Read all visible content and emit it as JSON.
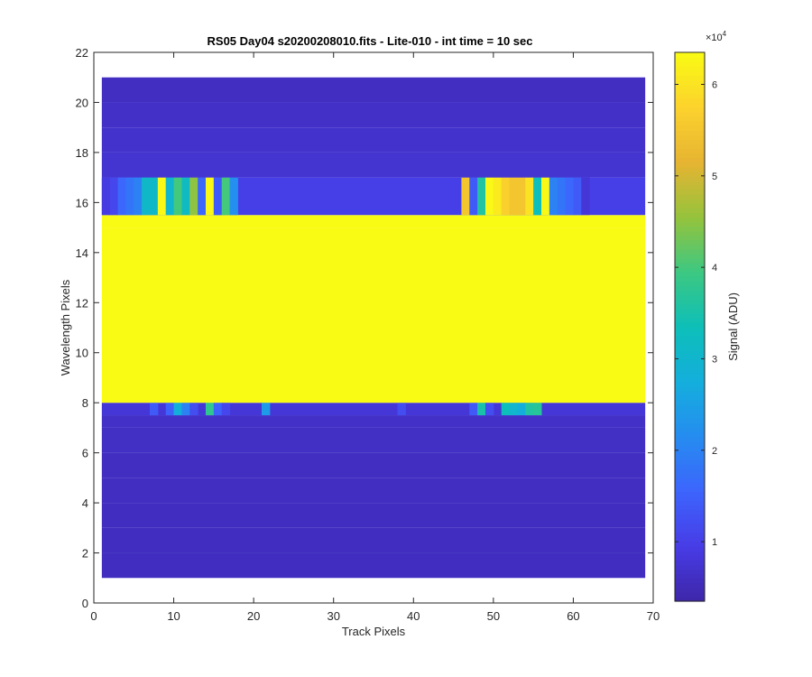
{
  "chart_data": {
    "type": "heatmap",
    "title": "RS05 Day04  s20200208010.fits - Lite-010 - int time = 10 sec",
    "xlabel": "Track Pixels",
    "ylabel": "Wavelength Pixels",
    "xlim": [
      0,
      70
    ],
    "ylim": [
      0,
      22
    ],
    "x_ticks": [
      "0",
      "10",
      "20",
      "30",
      "40",
      "50",
      "60",
      "70"
    ],
    "y_ticks": [
      "0",
      "2",
      "4",
      "6",
      "8",
      "10",
      "12",
      "14",
      "16",
      "18",
      "20",
      "22"
    ],
    "x_tick_values": [
      0,
      10,
      20,
      30,
      40,
      50,
      60,
      70
    ],
    "y_tick_values": [
      0,
      2,
      4,
      6,
      8,
      10,
      12,
      14,
      16,
      18,
      20,
      22
    ],
    "grid": false,
    "image_x_range": [
      1,
      69
    ],
    "image_y_range": [
      1,
      21
    ],
    "colormap": "parula",
    "colorbar": {
      "label": "Signal (ADU)",
      "exponent": "×10",
      "exponent_power": "4",
      "ticks": [
        "1",
        "2",
        "3",
        "4",
        "5",
        "6"
      ],
      "tick_values": [
        10000,
        20000,
        30000,
        40000,
        50000,
        60000
      ],
      "clim": [
        3500,
        63500
      ]
    },
    "rows": [
      {
        "row_y": 1,
        "base_adu": 5800
      },
      {
        "row_y": 2,
        "base_adu": 5800
      },
      {
        "row_y": 3,
        "base_adu": 5800
      },
      {
        "row_y": 4,
        "base_adu": 6000
      },
      {
        "row_y": 5,
        "base_adu": 6000
      },
      {
        "row_y": 6,
        "base_adu": 6200
      },
      {
        "row_y": 7,
        "base_adu": 6500
      },
      {
        "row_y": 7.5,
        "base_adu": 8000,
        "spikes": [
          {
            "x": 7,
            "adu": 14000
          },
          {
            "x": 9,
            "adu": 15000
          },
          {
            "x": 10,
            "adu": 28000
          },
          {
            "x": 11,
            "adu": 20000
          },
          {
            "x": 12,
            "adu": 12000
          },
          {
            "x": 14,
            "adu": 38000
          },
          {
            "x": 15,
            "adu": 15000
          },
          {
            "x": 16,
            "adu": 11000
          },
          {
            "x": 21,
            "adu": 24000
          },
          {
            "x": 38,
            "adu": 12000
          },
          {
            "x": 47,
            "adu": 14000
          },
          {
            "x": 48,
            "adu": 35000
          },
          {
            "x": 49,
            "adu": 12000
          },
          {
            "x": 51,
            "adu": 33000
          },
          {
            "x": 52,
            "adu": 30000
          },
          {
            "x": 53,
            "adu": 28000
          },
          {
            "x": 54,
            "adu": 36000
          },
          {
            "x": 55,
            "adu": 37000
          }
        ]
      },
      {
        "row_y": 8,
        "base_adu": 63500
      },
      {
        "row_y": 15,
        "base_adu": 63500
      },
      {
        "row_y": 15.5,
        "base_adu": 10000,
        "spikes": [
          {
            "x": 1,
            "adu": 9000
          },
          {
            "x": 2,
            "adu": 11000
          },
          {
            "x": 3,
            "adu": 16000
          },
          {
            "x": 4,
            "adu": 18000
          },
          {
            "x": 5,
            "adu": 20000
          },
          {
            "x": 6,
            "adu": 31000
          },
          {
            "x": 7,
            "adu": 31000
          },
          {
            "x": 8,
            "adu": 63000
          },
          {
            "x": 9,
            "adu": 30000
          },
          {
            "x": 10,
            "adu": 40000
          },
          {
            "x": 11,
            "adu": 32000
          },
          {
            "x": 12,
            "adu": 45000
          },
          {
            "x": 13,
            "adu": 16000
          },
          {
            "x": 14,
            "adu": 63000
          },
          {
            "x": 15,
            "adu": 14000
          },
          {
            "x": 16,
            "adu": 40000
          },
          {
            "x": 17,
            "adu": 22000
          },
          {
            "x": 46,
            "adu": 55000
          },
          {
            "x": 47,
            "adu": 14000
          },
          {
            "x": 48,
            "adu": 36000
          },
          {
            "x": 49,
            "adu": 63000
          },
          {
            "x": 50,
            "adu": 61000
          },
          {
            "x": 51,
            "adu": 57000
          },
          {
            "x": 52,
            "adu": 55000
          },
          {
            "x": 53,
            "adu": 55000
          },
          {
            "x": 54,
            "adu": 60000
          },
          {
            "x": 55,
            "adu": 33000
          },
          {
            "x": 56,
            "adu": 63000
          },
          {
            "x": 57,
            "adu": 20000
          },
          {
            "x": 58,
            "adu": 18000
          },
          {
            "x": 59,
            "adu": 16000
          },
          {
            "x": 60,
            "adu": 14000
          },
          {
            "x": 61,
            "adu": 8000
          }
        ]
      },
      {
        "row_y": 17,
        "base_adu": 7500
      },
      {
        "row_y": 18,
        "base_adu": 7000
      },
      {
        "row_y": 19,
        "base_adu": 6500
      },
      {
        "row_y": 20,
        "base_adu": 6000
      },
      {
        "row_y": 21,
        "base_adu": 6000
      }
    ]
  }
}
